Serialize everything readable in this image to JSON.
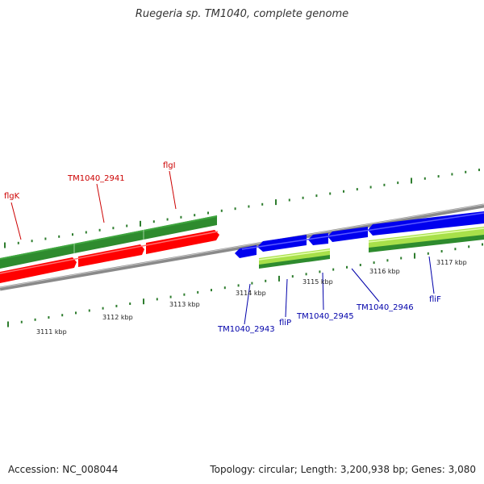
{
  "header": {
    "title": "Ruegeria sp. TM1040, complete genome"
  },
  "footer": {
    "accession": "Accession: NC_008044",
    "topology": "Topology: circular; Length: 3,200,938 bp; Genes: 3,080"
  },
  "colors": {
    "backbone": "#8a8a8a",
    "green_gene": "#2e8b2e",
    "red_gene": "#ff0000",
    "blue_gene": "#0000ee",
    "lime_gene": "#a8e04a",
    "tick": "#2e7d2e",
    "label_red": "#cc0000",
    "label_blue": "#0000aa"
  },
  "scale_labels": [
    "3111 kbp",
    "3112 kbp",
    "3113 kbp",
    "3114 kbp",
    "3115 kbp",
    "3116 kbp",
    "3117 kbp"
  ],
  "gene_labels_top": [
    "flgK",
    "TM1040_2941",
    "flgI"
  ],
  "gene_labels_bottom": [
    "TM1040_2943",
    "fliP",
    "TM1040_2945",
    "TM1040_2946",
    "fliF"
  ]
}
